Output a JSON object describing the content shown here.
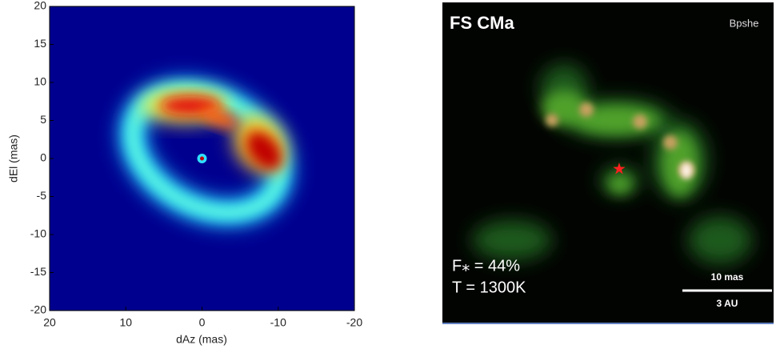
{
  "chart_data": [
    {
      "type": "heatmap",
      "xlabel": "dAz (mas)",
      "ylabel": "dEl (mas)",
      "xlim": [
        20,
        -20
      ],
      "ylim": [
        -20,
        20
      ],
      "xticks": [
        20,
        10,
        0,
        -10,
        -20
      ],
      "yticks": [
        20,
        15,
        10,
        5,
        0,
        -5,
        -10,
        -15,
        -20
      ]
    },
    {
      "type": "image",
      "title": "FS CMa",
      "band": "Bpshe",
      "annotations": [
        "F⁎ = 44%",
        "T = 1300K"
      ],
      "scale_bar": [
        "10 mas",
        "3 AU"
      ]
    }
  ]
}
